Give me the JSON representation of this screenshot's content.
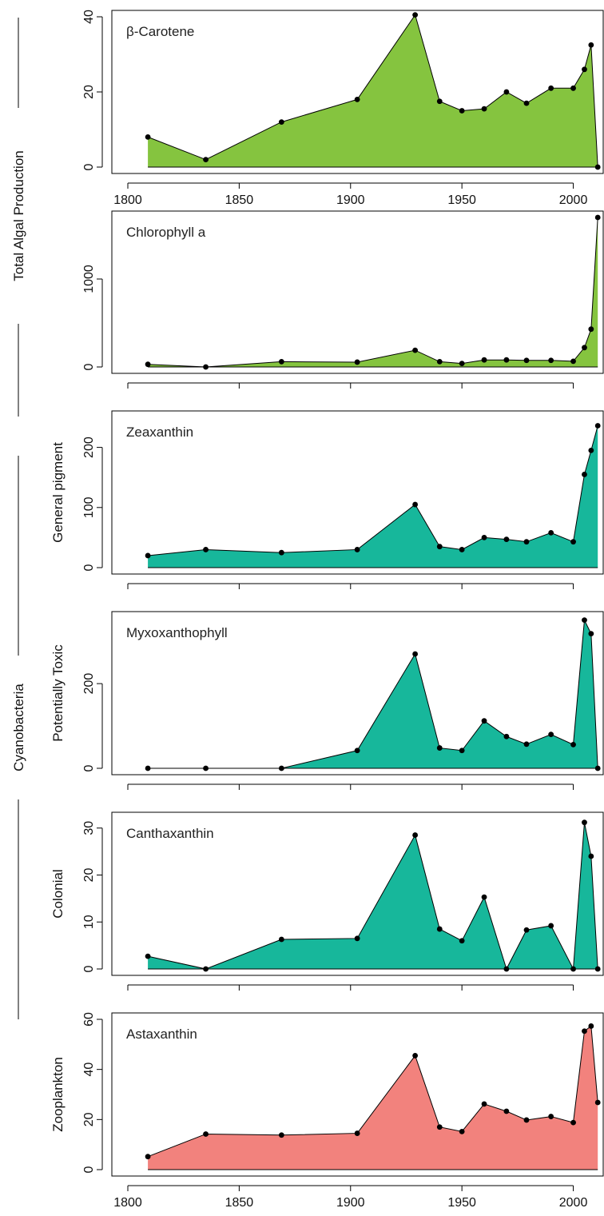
{
  "chart_data": [
    {
      "type": "area",
      "title": "β-Carotene",
      "ylabel": "",
      "color": "#85c43f",
      "xlim": [
        1800,
        2012
      ],
      "ylim": [
        0,
        40
      ],
      "yticks": [
        0,
        20,
        40
      ],
      "x_axis_labels": true,
      "x": [
        1809,
        1835,
        1869,
        1903,
        1929,
        1940,
        1950,
        1960,
        1970,
        1979,
        1990,
        2000,
        2005,
        2008,
        2011
      ],
      "y": [
        8,
        2,
        12,
        18,
        40.5,
        17.5,
        15,
        15.5,
        20,
        17,
        21,
        21,
        26,
        32.5,
        0
      ]
    },
    {
      "type": "area",
      "title": "Chlorophyll a",
      "ylabel": "",
      "color": "#85c43f",
      "xlim": [
        1800,
        2012
      ],
      "ylim": [
        0,
        1700
      ],
      "yticks": [
        0,
        1000
      ],
      "x_axis_labels": false,
      "x": [
        1809,
        1835,
        1869,
        1903,
        1929,
        1940,
        1950,
        1960,
        1970,
        1979,
        1990,
        2000,
        2005,
        2008,
        2011
      ],
      "y": [
        30,
        0,
        60,
        55,
        190,
        60,
        40,
        80,
        80,
        75,
        75,
        65,
        220,
        430,
        1700
      ]
    },
    {
      "type": "area",
      "title": "Zeaxanthin",
      "ylabel": "General pigment",
      "color": "#17b79b",
      "xlim": [
        1800,
        2012
      ],
      "ylim": [
        0,
        250
      ],
      "yticks": [
        0,
        100,
        200
      ],
      "x_axis_labels": false,
      "x": [
        1809,
        1835,
        1869,
        1903,
        1929,
        1940,
        1950,
        1960,
        1970,
        1979,
        1990,
        2000,
        2005,
        2008,
        2011
      ],
      "y": [
        20,
        30,
        25,
        30,
        105,
        35,
        30,
        50,
        47,
        43,
        58,
        43,
        155,
        195,
        236
      ]
    },
    {
      "type": "area",
      "title": "Myxoxanthophyll",
      "ylabel": "Potentially Toxic",
      "color": "#17b79b",
      "xlim": [
        1800,
        2012
      ],
      "ylim": [
        0,
        355
      ],
      "yticks": [
        0,
        200
      ],
      "x_axis_labels": false,
      "x": [
        1809,
        1835,
        1869,
        1903,
        1929,
        1940,
        1950,
        1960,
        1970,
        1979,
        1990,
        2000,
        2005,
        2008,
        2011
      ],
      "y": [
        0,
        0,
        0,
        42,
        270,
        48,
        42,
        112,
        75,
        57,
        80,
        56,
        350,
        318,
        0
      ]
    },
    {
      "type": "area",
      "title": "Canthaxanthin",
      "ylabel": "Colonial",
      "color": "#17b79b",
      "xlim": [
        1800,
        2012
      ],
      "ylim": [
        0,
        32
      ],
      "yticks": [
        0,
        10,
        20,
        30
      ],
      "x_axis_labels": false,
      "x": [
        1809,
        1835,
        1869,
        1903,
        1929,
        1940,
        1950,
        1960,
        1970,
        1979,
        1990,
        2000,
        2005,
        2008,
        2011
      ],
      "y": [
        2.7,
        0,
        6.3,
        6.5,
        28.5,
        8.5,
        6,
        15.3,
        0,
        8.3,
        9.2,
        0,
        31.2,
        24,
        0
      ]
    },
    {
      "type": "area",
      "title": "Astaxanthin",
      "ylabel": "Zooplankton",
      "color": "#f2827d",
      "xlim": [
        1800,
        2012
      ],
      "ylim": [
        0,
        60
      ],
      "yticks": [
        0,
        20,
        40,
        60
      ],
      "x_axis_labels": true,
      "x": [
        1809,
        1835,
        1869,
        1903,
        1929,
        1940,
        1950,
        1960,
        1970,
        1979,
        1990,
        2000,
        2005,
        2008,
        2011
      ],
      "y": [
        5.2,
        14.2,
        13.8,
        14.5,
        45.5,
        17,
        15.2,
        26.2,
        23.3,
        19.8,
        21.2,
        18.8,
        55.3,
        57.3,
        26.8
      ]
    }
  ],
  "xticks": [
    1800,
    1850,
    1900,
    1950,
    2000
  ],
  "groups": [
    {
      "label": "Total Algal Production"
    },
    {
      "label": "Cyanobacteria"
    }
  ]
}
